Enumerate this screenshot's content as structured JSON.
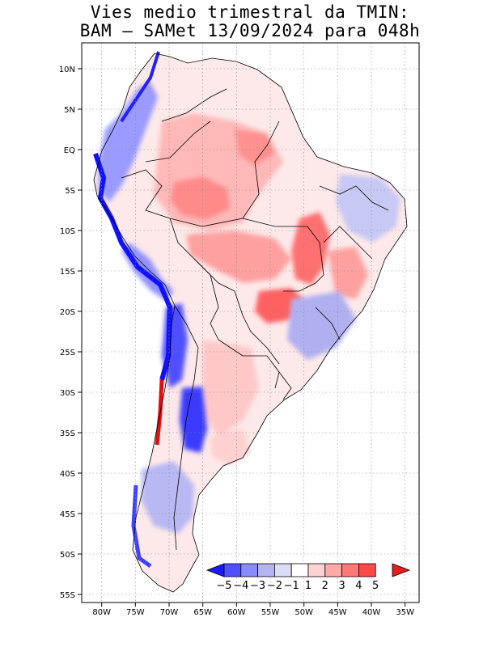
{
  "title_line1": "Vies medio trimestral da TMIN:",
  "title_line2": "BAM – SAMet 13/09/2024  para 048h",
  "lon_labels": [
    "80W",
    "75W",
    "70W",
    "65W",
    "60W",
    "55W",
    "50W",
    "45W",
    "40W",
    "35W"
  ],
  "lat_labels": [
    "10N",
    "5N",
    "EQ",
    "5S",
    "10S",
    "15S",
    "20S",
    "25S",
    "30S",
    "35S",
    "40S",
    "45S",
    "50S",
    "55S"
  ],
  "colorbar": {
    "labels": [
      "−5",
      "−4",
      "−3",
      "−2",
      "−1",
      "1",
      "2",
      "3",
      "4",
      "5"
    ],
    "colors": [
      "#1a1aff",
      "#5050ff",
      "#8a8aff",
      "#b4b4f0",
      "#dcdcf5",
      "#ffffff",
      "#ffd2d2",
      "#ffa8a8",
      "#ff7878",
      "#ff4848",
      "#e61e1e"
    ]
  }
}
